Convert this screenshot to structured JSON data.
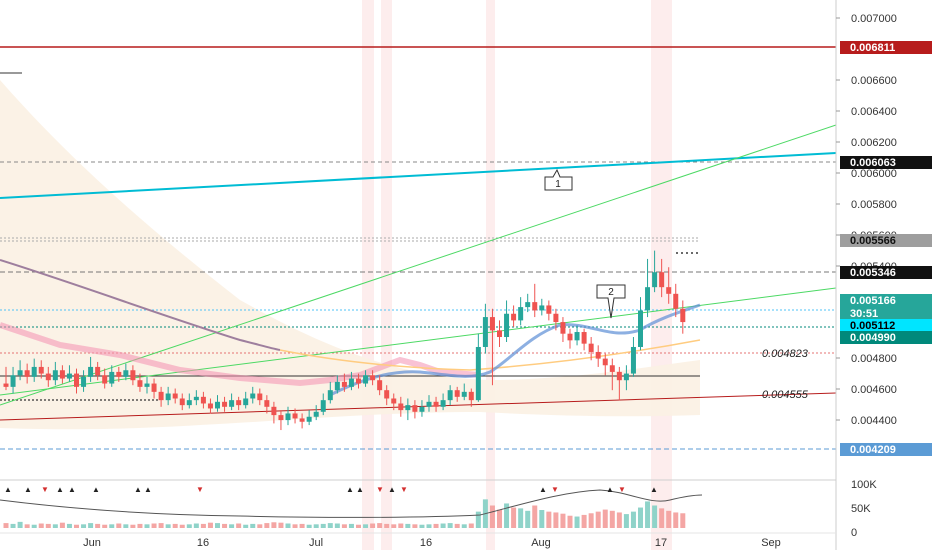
{
  "chart_data": {
    "type": "candlestick",
    "price_axis": {
      "ylim": [
        0.0042,
        0.0071
      ],
      "ticks": [
        "0.007000",
        "0.006600",
        "0.006400",
        "0.006200",
        "0.006000",
        "0.005800",
        "0.005600",
        "0.005400",
        "0.004800",
        "0.004600",
        "0.004400"
      ]
    },
    "volume_axis": {
      "ticks": [
        "100K",
        "50K",
        "0"
      ],
      "max": 110000
    },
    "time_axis": {
      "ticks": [
        "Jun",
        "16",
        "Jul",
        "16",
        "Aug",
        "17",
        "Sep"
      ]
    },
    "price_badges": [
      {
        "value": "0.006811",
        "bg": "#b71c1c",
        "fg": "#ffffff"
      },
      {
        "value": "0.006063",
        "bg": "#111111",
        "fg": "#ffffff"
      },
      {
        "value": "0.005566",
        "bg": "#9e9e9e",
        "fg": "#111111"
      },
      {
        "value": "0.005346",
        "bg": "#111111",
        "fg": "#ffffff"
      },
      {
        "value": "0.005166",
        "bg": "#26a69a",
        "fg": "#ffffff"
      },
      {
        "value": "30:51",
        "bg": "#26a69a",
        "fg": "#ffffff"
      },
      {
        "value": "0.005112",
        "bg": "#00e5ff",
        "fg": "#000000"
      },
      {
        "value": "0.004990",
        "bg": "#00897b",
        "fg": "#ffffff"
      },
      {
        "value": "0.004209",
        "bg": "#5b9bd5",
        "fg": "#ffffff"
      }
    ],
    "annotations": [
      {
        "text": "0.004823"
      },
      {
        "text": "0.004555"
      },
      {
        "text": "1"
      },
      {
        "text": "2"
      }
    ],
    "candles": [
      [
        0.0048,
        0.00478,
        0.0049,
        0.00476
      ],
      [
        0.00478,
        0.00485,
        0.0049,
        0.00474
      ],
      [
        0.00485,
        0.00488,
        0.00494,
        0.00482
      ],
      [
        0.00488,
        0.00484,
        0.00492,
        0.0048
      ],
      [
        0.00484,
        0.0049,
        0.00495,
        0.00481
      ],
      [
        0.0049,
        0.00486,
        0.00494,
        0.00483
      ],
      [
        0.00486,
        0.00482,
        0.0049,
        0.00478
      ],
      [
        0.00482,
        0.00488,
        0.00493,
        0.00479
      ],
      [
        0.00488,
        0.00483,
        0.00491,
        0.0048
      ],
      [
        0.00483,
        0.00486,
        0.00491,
        0.00481
      ],
      [
        0.00486,
        0.00478,
        0.00489,
        0.00474
      ],
      [
        0.00478,
        0.00484,
        0.00488,
        0.00475
      ],
      [
        0.00484,
        0.0049,
        0.00496,
        0.00481
      ],
      [
        0.0049,
        0.00485,
        0.00493,
        0.00482
      ],
      [
        0.00485,
        0.0048,
        0.00489,
        0.00477
      ],
      [
        0.0048,
        0.00487,
        0.00491,
        0.00478
      ],
      [
        0.00487,
        0.00484,
        0.0049,
        0.00481
      ],
      [
        0.00484,
        0.00488,
        0.00492,
        0.00482
      ],
      [
        0.00488,
        0.00482,
        0.00491,
        0.00479
      ],
      [
        0.00482,
        0.00478,
        0.00486,
        0.00475
      ],
      [
        0.00478,
        0.0048,
        0.00484,
        0.00474
      ],
      [
        0.0048,
        0.00475,
        0.00483,
        0.00471
      ],
      [
        0.00475,
        0.0047,
        0.00478,
        0.00466
      ],
      [
        0.0047,
        0.00474,
        0.00478,
        0.00467
      ],
      [
        0.00474,
        0.00471,
        0.00477,
        0.00468
      ],
      [
        0.00471,
        0.00467,
        0.00474,
        0.00464
      ],
      [
        0.00467,
        0.0047,
        0.00474,
        0.00465
      ],
      [
        0.0047,
        0.00472,
        0.00476,
        0.00467
      ],
      [
        0.00472,
        0.00468,
        0.00475,
        0.00465
      ],
      [
        0.00468,
        0.00465,
        0.00471,
        0.00462
      ],
      [
        0.00465,
        0.00469,
        0.00473,
        0.00463
      ],
      [
        0.00469,
        0.00466,
        0.00472,
        0.00463
      ],
      [
        0.00466,
        0.0047,
        0.00474,
        0.00464
      ],
      [
        0.0047,
        0.00467,
        0.00472,
        0.00464
      ],
      [
        0.00467,
        0.00471,
        0.00475,
        0.00465
      ],
      [
        0.00471,
        0.00474,
        0.00478,
        0.00468
      ],
      [
        0.00474,
        0.0047,
        0.00477,
        0.00467
      ],
      [
        0.0047,
        0.00466,
        0.00473,
        0.00462
      ],
      [
        0.00466,
        0.00461,
        0.00469,
        0.00456
      ],
      [
        0.00461,
        0.00458,
        0.00464,
        0.00452
      ],
      [
        0.00458,
        0.00462,
        0.00466,
        0.00455
      ],
      [
        0.00462,
        0.00459,
        0.00465,
        0.00456
      ],
      [
        0.00459,
        0.00457,
        0.00462,
        0.00453
      ],
      [
        0.00457,
        0.0046,
        0.00464,
        0.00455
      ],
      [
        0.0046,
        0.00463,
        0.00467,
        0.00458
      ],
      [
        0.00463,
        0.0047,
        0.00474,
        0.00461
      ],
      [
        0.0047,
        0.00476,
        0.00481,
        0.00468
      ],
      [
        0.00476,
        0.00481,
        0.00485,
        0.00474
      ],
      [
        0.00481,
        0.00478,
        0.00486,
        0.00475
      ],
      [
        0.00478,
        0.00483,
        0.00487,
        0.00476
      ],
      [
        0.00483,
        0.0048,
        0.00486,
        0.00477
      ],
      [
        0.0048,
        0.00485,
        0.00488,
        0.00478
      ],
      [
        0.00485,
        0.00482,
        0.00488,
        0.00479
      ],
      [
        0.00482,
        0.00476,
        0.00485,
        0.00473
      ],
      [
        0.00476,
        0.00471,
        0.00479,
        0.00467
      ],
      [
        0.00471,
        0.00468,
        0.00474,
        0.00464
      ],
      [
        0.00468,
        0.00464,
        0.00472,
        0.0046
      ],
      [
        0.00464,
        0.00467,
        0.00471,
        0.00458
      ],
      [
        0.00467,
        0.00463,
        0.0047,
        0.00459
      ],
      [
        0.00463,
        0.00466,
        0.0047,
        0.0046
      ],
      [
        0.00466,
        0.00469,
        0.00473,
        0.00463
      ],
      [
        0.00469,
        0.00466,
        0.00472,
        0.00463
      ],
      [
        0.00466,
        0.0047,
        0.00474,
        0.00464
      ],
      [
        0.0047,
        0.00476,
        0.00479,
        0.00467
      ],
      [
        0.00476,
        0.00472,
        0.00478,
        0.00469
      ],
      [
        0.00472,
        0.00475,
        0.0048,
        0.0047
      ],
      [
        0.00475,
        0.0047,
        0.00477,
        0.00466
      ],
      [
        0.0047,
        0.00502,
        0.0051,
        0.00469
      ],
      [
        0.00502,
        0.0052,
        0.00528,
        0.00498
      ],
      [
        0.0052,
        0.00512,
        0.00525,
        0.00479
      ],
      [
        0.00512,
        0.00508,
        0.00518,
        0.00502
      ],
      [
        0.00508,
        0.00522,
        0.0053,
        0.00505
      ],
      [
        0.00522,
        0.00518,
        0.00527,
        0.00514
      ],
      [
        0.00518,
        0.00526,
        0.00532,
        0.00515
      ],
      [
        0.00526,
        0.00529,
        0.00534,
        0.00523
      ],
      [
        0.00529,
        0.00524,
        0.0054,
        0.0052
      ],
      [
        0.00524,
        0.00527,
        0.00531,
        0.00521
      ],
      [
        0.00527,
        0.00522,
        0.0053,
        0.00518
      ],
      [
        0.00522,
        0.00517,
        0.00525,
        0.00512
      ],
      [
        0.00517,
        0.0051,
        0.0052,
        0.00505
      ],
      [
        0.0051,
        0.00506,
        0.00513,
        0.00501
      ],
      [
        0.00506,
        0.00511,
        0.00515,
        0.00503
      ],
      [
        0.00511,
        0.00504,
        0.00513,
        0.005
      ],
      [
        0.00504,
        0.00499,
        0.00508,
        0.00494
      ],
      [
        0.00499,
        0.00495,
        0.00503,
        0.0049
      ],
      [
        0.00495,
        0.00491,
        0.00498,
        0.00485
      ],
      [
        0.00491,
        0.00487,
        0.00495,
        0.00476
      ],
      [
        0.00487,
        0.00482,
        0.0049,
        0.0047
      ],
      [
        0.00482,
        0.00486,
        0.00491,
        0.00476
      ],
      [
        0.00486,
        0.00502,
        0.00508,
        0.00484
      ],
      [
        0.00502,
        0.00524,
        0.00532,
        0.005
      ],
      [
        0.00524,
        0.00538,
        0.00555,
        0.0052
      ],
      [
        0.00538,
        0.00547,
        0.0056,
        0.00535
      ],
      [
        0.00547,
        0.00538,
        0.00555,
        0.00532
      ],
      [
        0.00538,
        0.00534,
        0.0055,
        0.00528
      ],
      [
        0.00534,
        0.00525,
        0.0054,
        0.0052
      ],
      [
        0.00525,
        0.00517,
        0.0053,
        0.0051
      ]
    ],
    "volumes": [
      12000,
      10000,
      15000,
      9000,
      8000,
      11000,
      10000,
      9000,
      13000,
      10000,
      8000,
      9000,
      12000,
      10000,
      8000,
      9000,
      11000,
      9000,
      8000,
      10000,
      9000,
      11000,
      12000,
      9000,
      10000,
      8000,
      9000,
      11000,
      10000,
      13000,
      12000,
      10000,
      9000,
      11000,
      8000,
      10000,
      9000,
      12000,
      14000,
      13000,
      11000,
      9000,
      10000,
      8000,
      9000,
      10000,
      12000,
      11000,
      9000,
      10000,
      8000,
      9000,
      11000,
      12000,
      10000,
      9000,
      11000,
      10000,
      9000,
      8000,
      9000,
      10000,
      11000,
      12000,
      10000,
      9000,
      11000,
      40000,
      70000,
      55000,
      45000,
      60000,
      50000,
      48000,
      42000,
      55000,
      44000,
      40000,
      38000,
      35000,
      30000,
      28000,
      32000,
      36000,
      40000,
      45000,
      42000,
      38000,
      34000,
      40000,
      50000,
      65000,
      55000,
      48000,
      42000,
      38000,
      36000
    ]
  },
  "volume_markers": {
    "up_symbol": "▲",
    "down_symbol": "▼"
  }
}
